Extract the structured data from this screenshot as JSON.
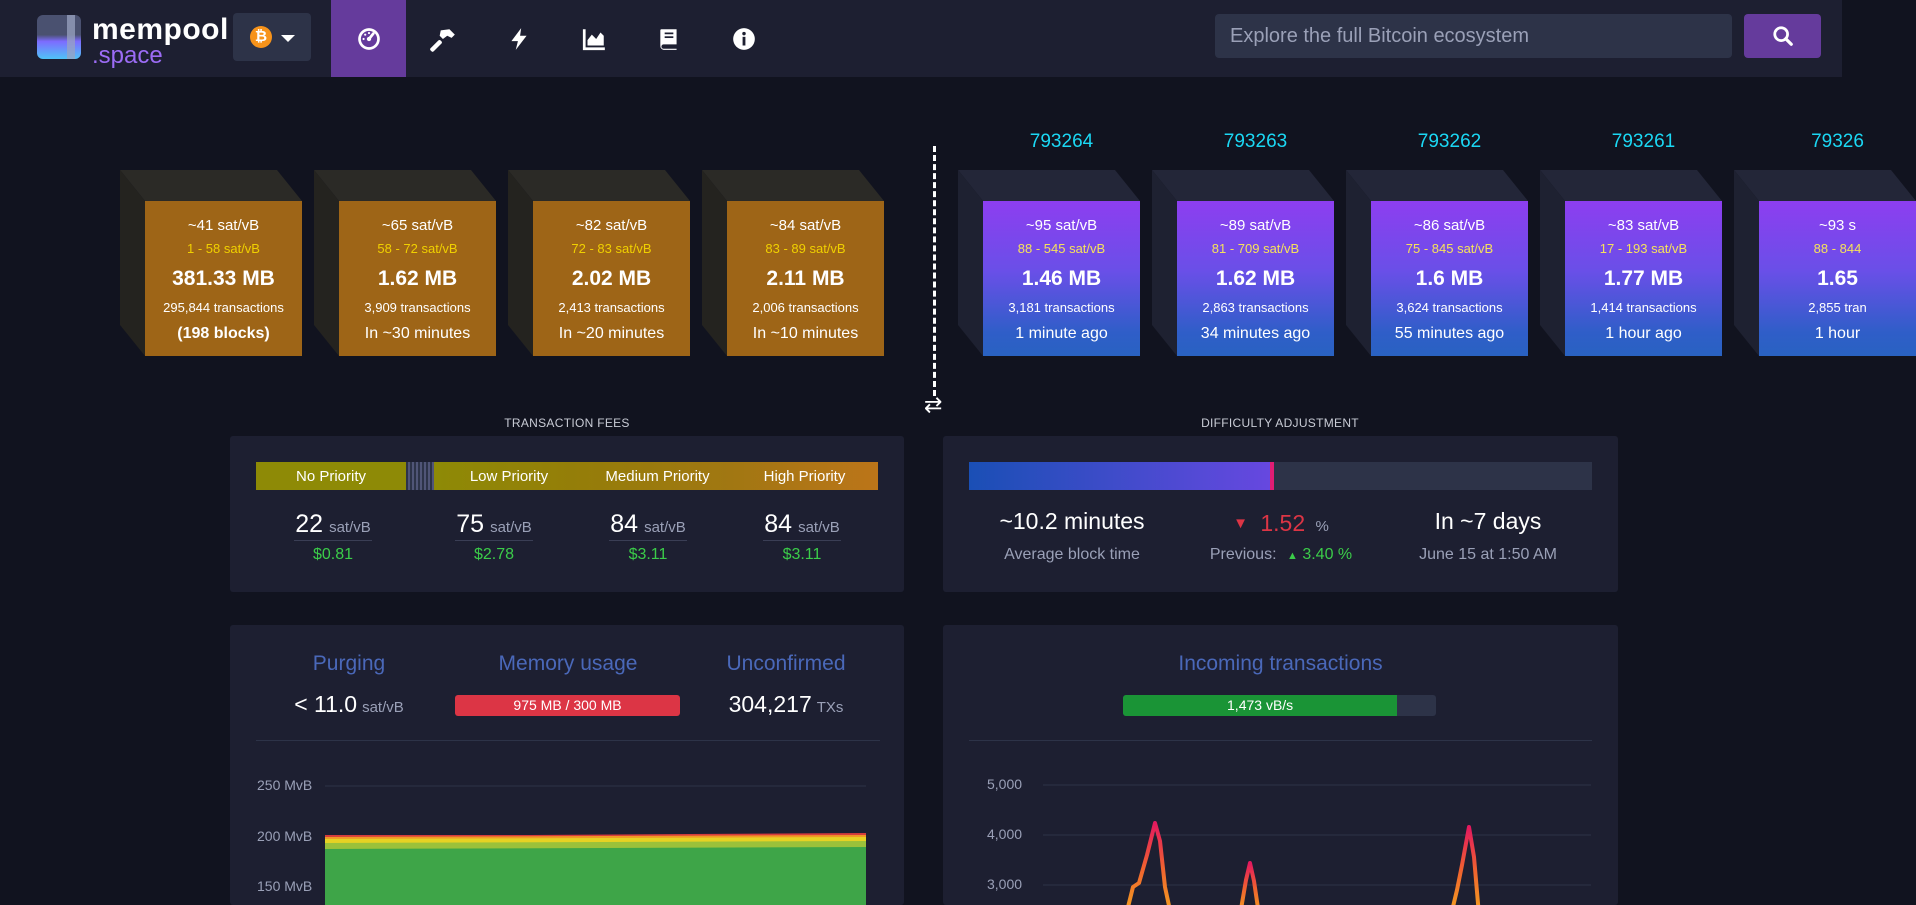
{
  "header": {
    "logo_line1": "mempool",
    "logo_line2": ".space",
    "network_symbol": "₿",
    "nav": [
      "dashboard-icon",
      "hammer-icon",
      "lightning-icon",
      "chart-icon",
      "book-icon",
      "info-icon"
    ],
    "search_placeholder": "Explore the full Bitcoin ecosystem"
  },
  "projected_blocks": [
    {
      "fee": "~41 sat/vB",
      "range": "1 - 58 sat/vB",
      "size": "381.33 MB",
      "tx": "295,844 transactions",
      "time": "(198 blocks)"
    },
    {
      "fee": "~65 sat/vB",
      "range": "58 - 72 sat/vB",
      "size": "1.62 MB",
      "tx": "3,909 transactions",
      "time": "In ~30 minutes"
    },
    {
      "fee": "~82 sat/vB",
      "range": "72 - 83 sat/vB",
      "size": "2.02 MB",
      "tx": "2,413 transactions",
      "time": "In ~20 minutes"
    },
    {
      "fee": "~84 sat/vB",
      "range": "83 - 89 sat/vB",
      "size": "2.11 MB",
      "tx": "2,006 transactions",
      "time": "In ~10 minutes"
    }
  ],
  "mined_blocks": [
    {
      "height": "793264",
      "fee": "~95 sat/vB",
      "range": "88 - 545 sat/vB",
      "size": "1.46 MB",
      "tx": "3,181 transactions",
      "time": "1 minute ago"
    },
    {
      "height": "793263",
      "fee": "~89 sat/vB",
      "range": "81 - 709 sat/vB",
      "size": "1.62 MB",
      "tx": "2,863 transactions",
      "time": "34 minutes ago"
    },
    {
      "height": "793262",
      "fee": "~86 sat/vB",
      "range": "75 - 845 sat/vB",
      "size": "1.6 MB",
      "tx": "3,624 transactions",
      "time": "55 minutes ago"
    },
    {
      "height": "793261",
      "fee": "~83 sat/vB",
      "range": "17 - 193 sat/vB",
      "size": "1.77 MB",
      "tx": "1,414 transactions",
      "time": "1 hour ago"
    },
    {
      "height": "79326",
      "fee": "~93 s",
      "range": "88 - 844",
      "size": "1.65",
      "tx": "2,855 tran",
      "time": "1 hour"
    }
  ],
  "fees": {
    "title": "TRANSACTION FEES",
    "labels": [
      "No Priority",
      "Low Priority",
      "Medium Priority",
      "High Priority"
    ],
    "values": [
      "22",
      "75",
      "84",
      "84"
    ],
    "unit": "sat/vB",
    "usd": [
      "$0.81",
      "$2.78",
      "$3.11",
      "$3.11"
    ]
  },
  "difficulty": {
    "title": "DIFFICULTY ADJUSTMENT",
    "progress": 0.487,
    "avg_block_time": "~10.2 minutes",
    "avg_block_time_label": "Average block time",
    "change": "1.52",
    "change_unit": "%",
    "previous_label": "Previous:",
    "previous_value": "3.40",
    "previous_unit": "%",
    "eta": "In ~7 days",
    "eta_date": "June 15 at 1:50 AM"
  },
  "mempool": {
    "purging_title": "Purging",
    "purging_value": "< 11.0",
    "purging_unit": "sat/vB",
    "memory_title": "Memory usage",
    "memory_value": "975 MB / 300 MB",
    "unconfirmed_title": "Unconfirmed",
    "unconfirmed_value": "304,217",
    "unconfirmed_unit": "TXs",
    "y_ticks": [
      "250 MvB",
      "200 MvB",
      "150 MvB"
    ]
  },
  "incoming": {
    "title": "Incoming transactions",
    "rate": "1,473 vB/s",
    "rate_fraction": 0.876,
    "y_ticks": [
      "5,000",
      "4,000",
      "3,000"
    ]
  },
  "colors": {
    "accent": "#653b9c",
    "projected": "#9e6517",
    "height": "#1bd8f4",
    "green": "#3bcc49",
    "red": "#dc3545"
  }
}
